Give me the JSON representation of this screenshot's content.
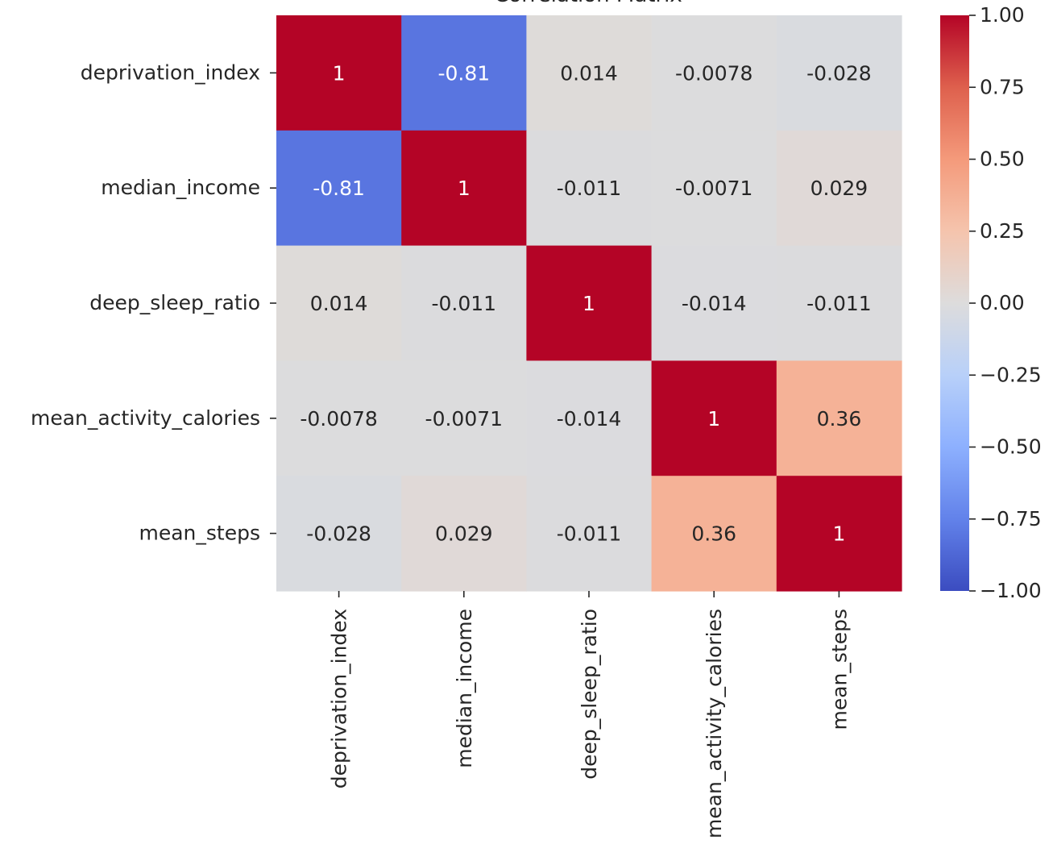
{
  "chart_data": {
    "type": "heatmap",
    "title": "Correlation Matrix",
    "row_labels": [
      "deprivation_index",
      "median_income",
      "deep_sleep_ratio",
      "mean_activity_calories",
      "mean_steps"
    ],
    "col_labels": [
      "deprivation_index",
      "median_income",
      "deep_sleep_ratio",
      "mean_activity_calories",
      "mean_steps"
    ],
    "values": [
      [
        1,
        -0.81,
        0.014,
        -0.0078,
        -0.028
      ],
      [
        -0.81,
        1,
        -0.011,
        -0.0071,
        0.029
      ],
      [
        0.014,
        -0.011,
        1,
        -0.014,
        -0.011
      ],
      [
        -0.0078,
        -0.0071,
        -0.014,
        1,
        0.36
      ],
      [
        -0.028,
        0.029,
        -0.011,
        0.36,
        1
      ]
    ],
    "cell_labels": [
      [
        "1",
        "-0.81",
        "0.014",
        "-0.0078",
        "-0.028"
      ],
      [
        "-0.81",
        "1",
        "-0.011",
        "-0.0071",
        "0.029"
      ],
      [
        "0.014",
        "-0.011",
        "1",
        "-0.014",
        "-0.011"
      ],
      [
        "-0.0078",
        "-0.0071",
        "-0.014",
        "1",
        "0.36"
      ],
      [
        "-0.028",
        "0.029",
        "-0.011",
        "0.36",
        "1"
      ]
    ],
    "colormap": "coolwarm",
    "vmin": -1,
    "vmax": 1,
    "colorbar_ticks": [
      1.0,
      0.75,
      0.5,
      0.25,
      0.0,
      -0.25,
      -0.5,
      -0.75,
      -1.0
    ],
    "colorbar_tick_labels": [
      "1.00",
      "0.75",
      "0.50",
      "0.25",
      "0.00",
      "−0.25",
      "−0.50",
      "−0.75",
      "−1.00"
    ],
    "colorbar_placement": "right"
  }
}
